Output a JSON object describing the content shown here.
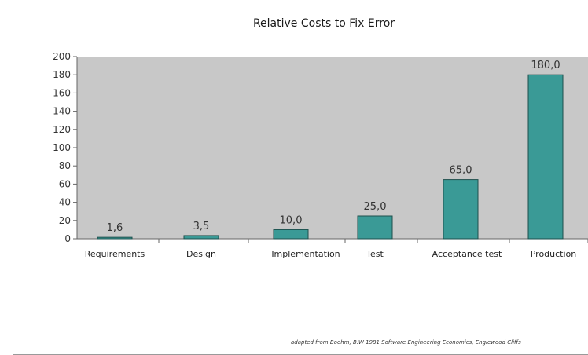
{
  "chart_data": {
    "type": "bar",
    "title": "Relative Costs to Fix Error",
    "xlabel": "",
    "ylabel": "",
    "categories": [
      "Requirements",
      "Design",
      "Implementation",
      "Test",
      "Acceptance test",
      "Production"
    ],
    "values": [
      1.6,
      3.5,
      10.0,
      25.0,
      65.0,
      180.0
    ],
    "data_labels": [
      "1,6",
      "3,5",
      "10,0",
      "25,0",
      "65,0",
      "180,0"
    ],
    "ylim": [
      0,
      200
    ],
    "yticks": [
      "0",
      "20",
      "40",
      "60",
      "80",
      "100",
      "120",
      "140",
      "160",
      "180",
      "200"
    ],
    "grid": false,
    "legend": "none",
    "colors": {
      "bar": "#3a9a96",
      "bar_stroke": "#1e4f4c",
      "plot_background": "#c8c8c8"
    }
  },
  "source_note": "adapted from Boehm, B.W 1981 Software Engineering Economics, Englewood Cliffs"
}
